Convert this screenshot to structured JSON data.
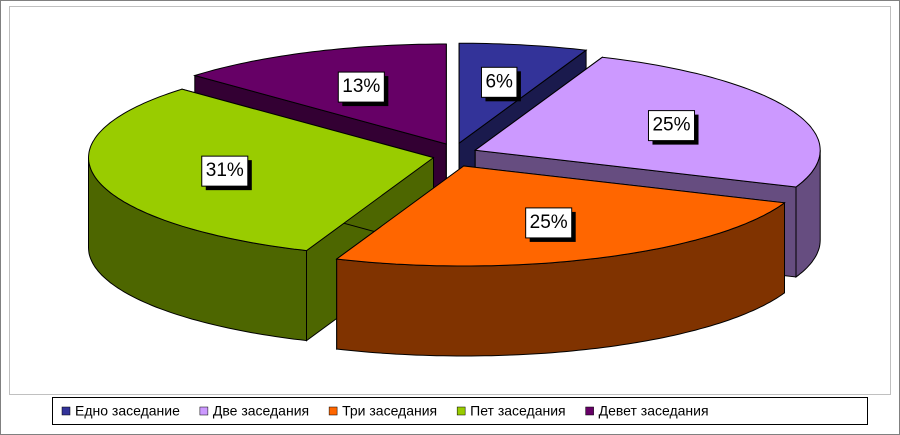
{
  "chart_data": {
    "type": "pie3d",
    "categories": [
      "Едно заседание",
      "Две заседания",
      "Три заседания",
      "Пет заседания",
      "Девет заседания"
    ],
    "values": [
      6,
      25,
      25,
      31,
      13
    ],
    "value_labels": [
      "6%",
      "25%",
      "25%",
      "31%",
      "13%"
    ],
    "colors": [
      "#333399",
      "#CC99FF",
      "#FF6600",
      "#99CC00",
      "#660066"
    ],
    "legend": "bottom"
  }
}
